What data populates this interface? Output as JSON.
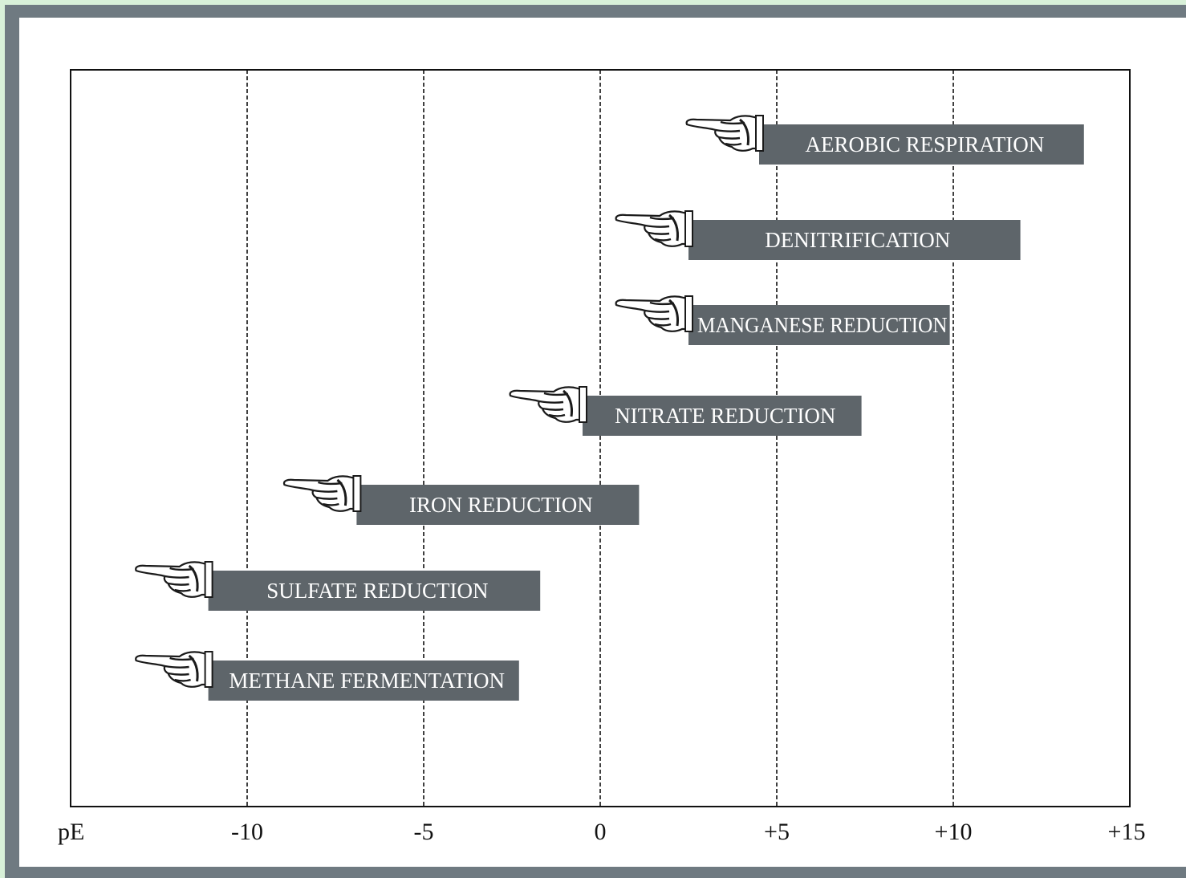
{
  "chart_data": {
    "type": "bar",
    "orientation": "horizontal-range",
    "x_axis_label": "pE",
    "xlim": [
      -15,
      15
    ],
    "ticks": [
      {
        "value": -10,
        "label": "-10"
      },
      {
        "value": -5,
        "label": "-5"
      },
      {
        "value": 0,
        "label": "0"
      },
      {
        "value": 5,
        "label": "+5"
      },
      {
        "value": 10,
        "label": "+10"
      },
      {
        "value": 15,
        "label": "+15"
      }
    ],
    "grid": "vertical-dashed",
    "bar_color": "#5e656a",
    "processes": [
      {
        "label": "AEROBIC RESPIRATION",
        "start": 4.5,
        "end": 13.7
      },
      {
        "label": "DENITRIFICATION",
        "start": 2.5,
        "end": 11.9
      },
      {
        "label": "MANGANESE REDUCTION",
        "start": 2.5,
        "end": 9.9
      },
      {
        "label": "NITRATE REDUCTION",
        "start": -0.5,
        "end": 7.4
      },
      {
        "label": "IRON REDUCTION",
        "start": -6.9,
        "end": 1.1
      },
      {
        "label": "SULFATE REDUCTION",
        "start": -11.1,
        "end": -1.7
      },
      {
        "label": "METHANE FERMENTATION",
        "start": -11.1,
        "end": -2.3
      }
    ]
  }
}
